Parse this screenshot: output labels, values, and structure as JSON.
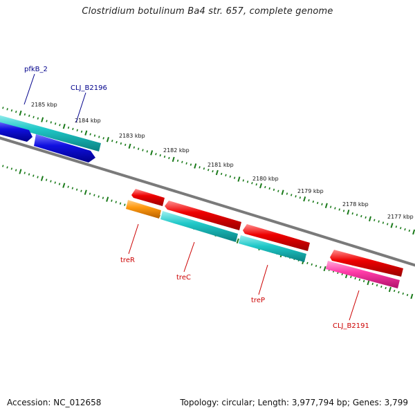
{
  "title": "Clostridium botulinum Ba4 str. 657, complete genome",
  "footer": {
    "accession": "Accession: NC_012658",
    "summary": "Topology: circular; Length: 3,977,794 bp; Genes: 3,799"
  },
  "ruler": {
    "labels": [
      "2185 kbp",
      "2184 kbp",
      "2183 kbp",
      "2182 kbp",
      "2181 kbp",
      "2180 kbp",
      "2179 kbp",
      "2178 kbp",
      "2177 kbp"
    ]
  },
  "colors": {
    "backbone": "#7a7a7a",
    "tick": "#1a7a1a",
    "forward_label": "#00008b",
    "reverse_label": "#cc0000",
    "red_gene": "#ee0000",
    "blue_gene": "#1010e0",
    "cyan_gene": "#20c8c8",
    "orange_gene": "#ff9a10",
    "pink_gene": "#ff3ca8"
  },
  "genes": [
    {
      "label": "pfkB_2",
      "strand": "forward"
    },
    {
      "label": "CLJ_B2196",
      "strand": "forward"
    },
    {
      "label": "treR",
      "strand": "reverse"
    },
    {
      "label": "treC",
      "strand": "reverse"
    },
    {
      "label": "treP",
      "strand": "reverse"
    },
    {
      "label": "CLJ_B2191",
      "strand": "reverse"
    }
  ]
}
